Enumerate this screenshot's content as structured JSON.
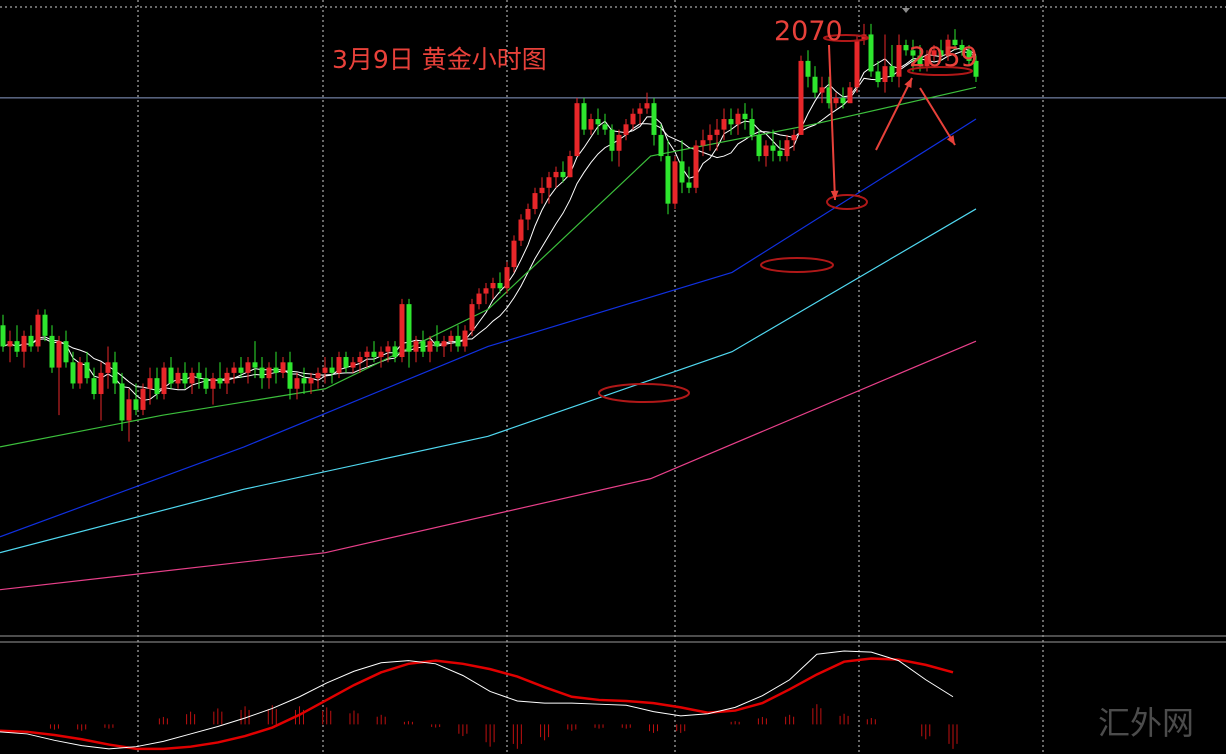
{
  "chart_data": {
    "type": "candlestick",
    "title": "3月9日 黄金小时图",
    "annotations": {
      "high_1": "2070",
      "high_2": "2059"
    },
    "watermark": "汇外网",
    "grid": true,
    "colors": {
      "background": "#000000",
      "up": "#e8272a",
      "down": "#2ee62e",
      "ma_fast": "#ffffff",
      "ma_mid": "#ffffff",
      "ma_green": "#3cbf3c",
      "ma_blue": "#1030e0",
      "ma_cyan": "#50d8f0",
      "ma_pink": "#e8408a",
      "annotation": "#e8413a",
      "current_price_line": "#8a9cc8",
      "osc_fast": "#ffffff",
      "osc_slow": "#e00000",
      "osc_hist": "#c01010"
    },
    "candles": [
      [
        2013,
        2015,
        2008,
        2009
      ],
      [
        2009,
        2012,
        2006,
        2010
      ],
      [
        2010,
        2013,
        2007,
        2008
      ],
      [
        2008,
        2012,
        2005,
        2011
      ],
      [
        2011,
        2013,
        2008,
        2009
      ],
      [
        2009,
        2016,
        2008,
        2015
      ],
      [
        2015,
        2016,
        2010,
        2011
      ],
      [
        2011,
        2013,
        2004,
        2005
      ],
      [
        2005,
        2011,
        1996,
        2010
      ],
      [
        2010,
        2012,
        2005,
        2006
      ],
      [
        2006,
        2008,
        2001,
        2002
      ],
      [
        2002,
        2007,
        2001,
        2006
      ],
      [
        2006,
        2008,
        2002,
        2003
      ],
      [
        2003,
        2005,
        1999,
        2000
      ],
      [
        2000,
        2006,
        1995,
        2004
      ],
      [
        2004,
        2009,
        2001,
        2006
      ],
      [
        2006,
        2008,
        2000,
        2002
      ],
      [
        2002,
        2004,
        1993,
        1995
      ],
      [
        1995,
        2001,
        1991,
        1999
      ],
      [
        1999,
        2002,
        1996,
        1997
      ],
      [
        1997,
        2002,
        1996,
        2001
      ],
      [
        2001,
        2005,
        1998,
        2003
      ],
      [
        2003,
        2005,
        1999,
        2000
      ],
      [
        2000,
        2006,
        1999,
        2005
      ],
      [
        2005,
        2007,
        2001,
        2002
      ],
      [
        2002,
        2005,
        2001,
        2004
      ],
      [
        2004,
        2006,
        2001,
        2002
      ],
      [
        2002,
        2005,
        2000,
        2004
      ],
      [
        2004,
        2006,
        2001,
        2003
      ],
      [
        2003,
        2005,
        2000,
        2001
      ],
      [
        2001,
        2004,
        1998,
        2003
      ],
      [
        2003,
        2006,
        2001,
        2002
      ],
      [
        2002,
        2005,
        2000,
        2004
      ],
      [
        2004,
        2006,
        2002,
        2005
      ],
      [
        2005,
        2007,
        2003,
        2004
      ],
      [
        2004,
        2007,
        2002,
        2006
      ],
      [
        2006,
        2010,
        2003,
        2005
      ],
      [
        2005,
        2007,
        2001,
        2003
      ],
      [
        2003,
        2006,
        2001,
        2005
      ],
      [
        2005,
        2008,
        2002,
        2004
      ],
      [
        2004,
        2007,
        2003,
        2006
      ],
      [
        2006,
        2008,
        1999,
        2001
      ],
      [
        2001,
        2004,
        1999,
        2003
      ],
      [
        2003,
        2005,
        2000,
        2002
      ],
      [
        2002,
        2004,
        2000,
        2003
      ],
      [
        2003,
        2005,
        2001,
        2004
      ],
      [
        2004,
        2007,
        2002,
        2005
      ],
      [
        2005,
        2007,
        2002,
        2004
      ],
      [
        2004,
        2008,
        2003,
        2007
      ],
      [
        2007,
        2008,
        2004,
        2005
      ],
      [
        2005,
        2007,
        2004,
        2006
      ],
      [
        2006,
        2008,
        2004,
        2007
      ],
      [
        2007,
        2009,
        2005,
        2008
      ],
      [
        2008,
        2010,
        2006,
        2007
      ],
      [
        2007,
        2009,
        2005,
        2008
      ],
      [
        2008,
        2010,
        2006,
        2009
      ],
      [
        2009,
        2010,
        2006,
        2007
      ],
      [
        2007,
        2018,
        2006,
        2017
      ],
      [
        2017,
        2018,
        2005,
        2008
      ],
      [
        2008,
        2011,
        2006,
        2010
      ],
      [
        2010,
        2012,
        2007,
        2008
      ],
      [
        2008,
        2011,
        2006,
        2010
      ],
      [
        2010,
        2013,
        2008,
        2009
      ],
      [
        2009,
        2011,
        2007,
        2010
      ],
      [
        2010,
        2012,
        2008,
        2011
      ],
      [
        2011,
        2013,
        2008,
        2009
      ],
      [
        2009,
        2013,
        2008,
        2012
      ],
      [
        2012,
        2018,
        2011,
        2017
      ],
      [
        2017,
        2020,
        2016,
        2019
      ],
      [
        2019,
        2021,
        2017,
        2020
      ],
      [
        2020,
        2022,
        2018,
        2021
      ],
      [
        2021,
        2023,
        2019,
        2020
      ],
      [
        2020,
        2025,
        2019,
        2024
      ],
      [
        2024,
        2030,
        2023,
        2029
      ],
      [
        2029,
        2034,
        2028,
        2033
      ],
      [
        2033,
        2036,
        2031,
        2035
      ],
      [
        2035,
        2039,
        2034,
        2038
      ],
      [
        2038,
        2041,
        2036,
        2039
      ],
      [
        2039,
        2042,
        2036,
        2041
      ],
      [
        2041,
        2043,
        2039,
        2042
      ],
      [
        2042,
        2044,
        2040,
        2041
      ],
      [
        2041,
        2046,
        2041,
        2045
      ],
      [
        2045,
        2056,
        2045,
        2055
      ],
      [
        2055,
        2056,
        2049,
        2050
      ],
      [
        2050,
        2053,
        2049,
        2052
      ],
      [
        2052,
        2054,
        2049,
        2051
      ],
      [
        2051,
        2053,
        2049,
        2050
      ],
      [
        2050,
        2051,
        2044,
        2046
      ],
      [
        2046,
        2050,
        2043,
        2049
      ],
      [
        2049,
        2052,
        2048,
        2051
      ],
      [
        2051,
        2054,
        2050,
        2053
      ],
      [
        2053,
        2055,
        2051,
        2054
      ],
      [
        2054,
        2057,
        2053,
        2055
      ],
      [
        2055,
        2056,
        2047,
        2049
      ],
      [
        2049,
        2051,
        2044,
        2045
      ],
      [
        2045,
        2048,
        2034,
        2036
      ],
      [
        2036,
        2045,
        2035,
        2044
      ],
      [
        2044,
        2048,
        2038,
        2040
      ],
      [
        2040,
        2043,
        2038,
        2039
      ],
      [
        2039,
        2048,
        2038,
        2047
      ],
      [
        2047,
        2050,
        2045,
        2048
      ],
      [
        2048,
        2051,
        2046,
        2049
      ],
      [
        2049,
        2052,
        2046,
        2050
      ],
      [
        2050,
        2054,
        2048,
        2052
      ],
      [
        2052,
        2054,
        2049,
        2051
      ],
      [
        2051,
        2054,
        2049,
        2053
      ],
      [
        2053,
        2055,
        2050,
        2052
      ],
      [
        2052,
        2054,
        2048,
        2049
      ],
      [
        2049,
        2050,
        2044,
        2045
      ],
      [
        2045,
        2048,
        2043,
        2047
      ],
      [
        2047,
        2050,
        2044,
        2046
      ],
      [
        2046,
        2048,
        2044,
        2045
      ],
      [
        2045,
        2049,
        2044,
        2048
      ],
      [
        2048,
        2050,
        2046,
        2049
      ],
      [
        2049,
        2064,
        2049,
        2063
      ],
      [
        2063,
        2065,
        2058,
        2060
      ],
      [
        2060,
        2062,
        2056,
        2057
      ],
      [
        2057,
        2060,
        2055,
        2058
      ],
      [
        2058,
        2060,
        2054,
        2055
      ],
      [
        2055,
        2057,
        2054,
        2056
      ],
      [
        2056,
        2058,
        2054,
        2055
      ],
      [
        2055,
        2059,
        2055,
        2058
      ],
      [
        2058,
        2068,
        2057,
        2067
      ],
      [
        2067,
        2070,
        2066,
        2068
      ],
      [
        2068,
        2070,
        2060,
        2061
      ],
      [
        2061,
        2063,
        2058,
        2059
      ],
      [
        2059,
        2068,
        2057,
        2062
      ],
      [
        2062,
        2066,
        2059,
        2060
      ],
      [
        2060,
        2068,
        2058,
        2066
      ],
      [
        2066,
        2067,
        2064,
        2065
      ],
      [
        2065,
        2067,
        2061,
        2064
      ],
      [
        2064,
        2066,
        2061,
        2062
      ],
      [
        2062,
        2065,
        2061,
        2064
      ],
      [
        2064,
        2066,
        2063,
        2065
      ],
      [
        2065,
        2067,
        2063,
        2064
      ],
      [
        2064,
        2068,
        2063,
        2067
      ],
      [
        2067,
        2069,
        2065,
        2066
      ],
      [
        2066,
        2067,
        2064,
        2065
      ],
      [
        2065,
        2066,
        2062,
        2063
      ],
      [
        2063,
        2064,
        2059,
        2060
      ]
    ],
    "ma_guides": {
      "green": [
        [
          1982,
          1990
        ],
        [
          1998,
          1996
        ],
        [
          2005,
          2001
        ],
        [
          2018,
          2016
        ],
        [
          2030,
          2045
        ],
        [
          2046,
          2051
        ],
        [
          2064,
          2058
        ]
      ],
      "blue": [
        [
          1967,
          1973
        ],
        [
          1983,
          1990
        ],
        [
          1998,
          2009
        ],
        [
          2018,
          2023
        ],
        [
          2049,
          2052
        ]
      ],
      "cyan": [
        [
          1967,
          1970
        ],
        [
          1977,
          1982
        ],
        [
          1985,
          1992
        ],
        [
          2004,
          2008
        ],
        [
          2024,
          2035
        ]
      ],
      "pink": [
        [
          1957,
          1963
        ],
        [
          1966,
          1970
        ],
        [
          1976,
          1984
        ],
        [
          1992,
          2010
        ]
      ]
    },
    "oscillator": {
      "fast": [
        -0.7,
        -0.9,
        -1.5,
        -2.0,
        -2.3,
        -2.1,
        -1.6,
        -0.9,
        -0.2,
        0.6,
        1.5,
        2.6,
        3.9,
        5.0,
        5.8,
        6.0,
        5.7,
        4.6,
        3.1,
        2.2,
        2.0,
        2.0,
        1.9,
        1.8,
        1.2,
        0.8,
        1.0,
        1.6,
        2.7,
        4.2,
        6.6,
        6.9,
        6.8,
        6.0,
        4.2,
        2.6
      ],
      "slow": [
        -0.6,
        -0.7,
        -1.0,
        -1.4,
        -1.9,
        -2.3,
        -2.3,
        -2.1,
        -1.7,
        -1.1,
        -0.3,
        0.9,
        2.3,
        3.7,
        4.9,
        5.7,
        6.0,
        5.7,
        5.2,
        4.5,
        3.5,
        2.6,
        2.3,
        2.2,
        2.0,
        1.6,
        1.1,
        1.3,
        2.0,
        3.3,
        4.7,
        5.9,
        6.2,
        6.1,
        5.6,
        4.9
      ],
      "hist": [
        0.1,
        -0.2,
        -0.5,
        -0.6,
        -0.4,
        0.2,
        0.7,
        1.2,
        1.5,
        1.7,
        1.8,
        1.7,
        1.6,
        1.3,
        0.9,
        0.3,
        -0.3,
        -1.1,
        -2.1,
        -2.3,
        -1.5,
        -0.6,
        -0.4,
        -0.4,
        -0.8,
        -0.8,
        -0.1,
        0.3,
        0.7,
        0.9,
        1.9,
        1.0,
        0.6,
        -0.1,
        -1.4,
        -2.3
      ]
    },
    "current_price": 2056
  }
}
